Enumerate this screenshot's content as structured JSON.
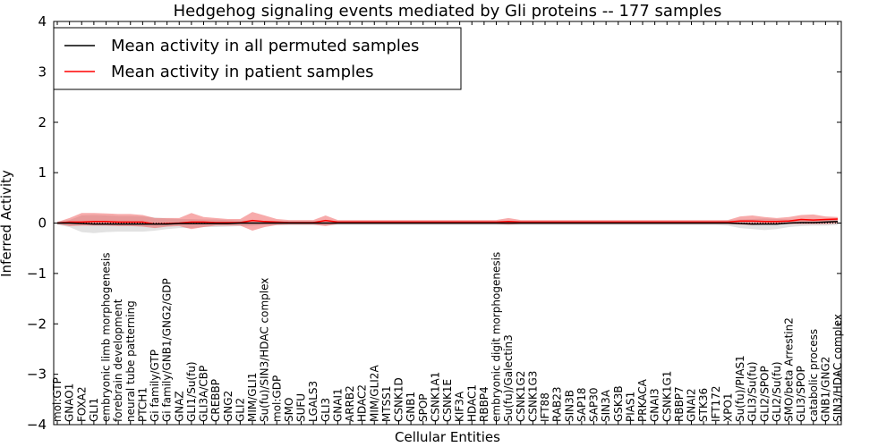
{
  "chart_data": {
    "type": "line",
    "title": "Hedgehog signaling events mediated by Gli proteins -- 177 samples",
    "xlabel": "Cellular Entities",
    "ylabel": "Inferred Activity",
    "ylim": [
      -4,
      4
    ],
    "yticks": [
      4,
      3,
      2,
      1,
      0,
      -1,
      -2,
      -3,
      -4
    ],
    "ytick_labels": [
      "4",
      "3",
      "2",
      "1",
      "0",
      "−1",
      "−2",
      "−3",
      "−4"
    ],
    "legend_location": "top-left",
    "categories": [
      "mol:GTP",
      "GNAO1",
      "FOXA2",
      "GLI1",
      "embryonic limb morphogenesis",
      "forebrain development",
      "neural tube patterning",
      "PTCH1",
      "Gi family/GTP",
      "Gi family/GNB1/GNG2/GDP",
      "GNAZ",
      "GLI1/Su(fu)",
      "GLI3A/CBP",
      "CREBBP",
      "GNG2",
      "GLI2",
      "MIM/GLI1",
      "Su(fu)/SIN3/HDAC complex",
      "mol:GDP",
      "SMO",
      "SUFU",
      "LGALS3",
      "GLI3",
      "GNAI1",
      "ARRB2",
      "HDAC2",
      "MIM/GLI2A",
      "MTSS1",
      "CSNK1D",
      "GNB1",
      "SPOP",
      "CSNK1A1",
      "CSNK1E",
      "KIF3A",
      "HDAC1",
      "RBBP4",
      "embryonic digit morphogenesis",
      "Su(fu)/Galectin3",
      "CSNK1G2",
      "CSNK1G3",
      "IFT88",
      "RAB23",
      "SIN3B",
      "SAP18",
      "SAP30",
      "SIN3A",
      "GSK3B",
      "PIAS1",
      "PRKACA",
      "GNAI3",
      "CSNK1G1",
      "RBBP7",
      "GNAI2",
      "STK36",
      "IFT172",
      "XPO1",
      "Su(fu)/PIAS1",
      "GLI3/Su(fu)",
      "GLI2/SPOP",
      "GLI2/Su(fu)",
      "SMO/beta Arrestin2",
      "GLI3/SPOP",
      "catabolic process",
      "GNB1/GNG2",
      "SIN3/HDAC complex"
    ],
    "series": [
      {
        "name": "Mean activity in all permuted samples",
        "color": "#000000",
        "values": [
          0.0,
          0.0,
          -0.01,
          -0.02,
          -0.02,
          -0.02,
          -0.02,
          -0.02,
          -0.02,
          -0.02,
          -0.01,
          -0.01,
          -0.01,
          -0.01,
          -0.01,
          0.0,
          0.0,
          0.0,
          0.0,
          0.0,
          0.0,
          0.0,
          0.0,
          0.0,
          0.0,
          0.0,
          0.0,
          0.0,
          0.0,
          0.0,
          0.0,
          0.0,
          0.0,
          0.0,
          0.0,
          0.0,
          0.0,
          0.0,
          0.0,
          0.0,
          0.0,
          0.0,
          0.0,
          0.0,
          0.0,
          0.0,
          0.0,
          0.0,
          0.0,
          0.0,
          0.0,
          0.0,
          0.0,
          0.0,
          0.0,
          0.0,
          -0.01,
          -0.02,
          -0.02,
          -0.02,
          0.0,
          0.01,
          0.01,
          0.02,
          0.03
        ],
        "band_low": [
          -0.03,
          -0.08,
          -0.18,
          -0.2,
          -0.18,
          -0.17,
          -0.17,
          -0.17,
          -0.15,
          -0.12,
          -0.1,
          -0.1,
          -0.08,
          -0.08,
          -0.07,
          -0.06,
          -0.05,
          -0.04,
          -0.04,
          -0.04,
          -0.04,
          -0.04,
          -0.04,
          -0.04,
          -0.04,
          -0.04,
          -0.04,
          -0.04,
          -0.04,
          -0.04,
          -0.04,
          -0.04,
          -0.04,
          -0.04,
          -0.04,
          -0.04,
          -0.04,
          -0.04,
          -0.04,
          -0.04,
          -0.04,
          -0.04,
          -0.04,
          -0.04,
          -0.04,
          -0.04,
          -0.04,
          -0.04,
          -0.04,
          -0.04,
          -0.04,
          -0.04,
          -0.04,
          -0.04,
          -0.04,
          -0.05,
          -0.1,
          -0.12,
          -0.14,
          -0.12,
          -0.08,
          -0.06,
          -0.05,
          -0.05,
          -0.04
        ],
        "band_high": [
          0.03,
          0.06,
          0.15,
          0.16,
          0.15,
          0.14,
          0.14,
          0.13,
          0.11,
          0.09,
          0.08,
          0.08,
          0.07,
          0.07,
          0.06,
          0.05,
          0.05,
          0.04,
          0.04,
          0.04,
          0.04,
          0.04,
          0.04,
          0.04,
          0.04,
          0.04,
          0.04,
          0.04,
          0.04,
          0.04,
          0.04,
          0.04,
          0.04,
          0.04,
          0.04,
          0.04,
          0.04,
          0.04,
          0.04,
          0.04,
          0.04,
          0.04,
          0.04,
          0.04,
          0.04,
          0.04,
          0.04,
          0.04,
          0.04,
          0.04,
          0.04,
          0.04,
          0.04,
          0.04,
          0.04,
          0.05,
          0.07,
          0.08,
          0.09,
          0.08,
          0.07,
          0.06,
          0.06,
          0.07,
          0.08
        ]
      },
      {
        "name": "Mean activity in patient samples",
        "color": "#ff0000",
        "values": [
          0.0,
          0.02,
          0.02,
          0.03,
          0.03,
          0.02,
          0.02,
          0.02,
          -0.02,
          -0.01,
          0.0,
          0.02,
          0.02,
          0.01,
          0.01,
          0.01,
          0.05,
          0.03,
          0.02,
          0.01,
          0.01,
          0.01,
          0.05,
          0.02,
          0.02,
          0.02,
          0.02,
          0.02,
          0.02,
          0.02,
          0.02,
          0.02,
          0.02,
          0.02,
          0.02,
          0.02,
          0.02,
          0.03,
          0.02,
          0.02,
          0.02,
          0.02,
          0.02,
          0.02,
          0.02,
          0.02,
          0.02,
          0.02,
          0.02,
          0.02,
          0.02,
          0.02,
          0.02,
          0.02,
          0.02,
          0.02,
          0.04,
          0.04,
          0.03,
          0.03,
          0.04,
          0.07,
          0.06,
          0.07,
          0.08
        ],
        "band_low": [
          -0.02,
          -0.06,
          -0.05,
          -0.05,
          -0.05,
          -0.06,
          -0.06,
          -0.07,
          -0.1,
          -0.07,
          -0.06,
          -0.12,
          -0.08,
          -0.05,
          -0.05,
          -0.05,
          -0.15,
          -0.08,
          -0.04,
          -0.03,
          -0.03,
          -0.03,
          -0.06,
          -0.02,
          -0.02,
          -0.02,
          -0.02,
          -0.02,
          -0.02,
          -0.02,
          -0.02,
          -0.02,
          -0.02,
          -0.02,
          -0.02,
          -0.02,
          -0.02,
          -0.03,
          -0.02,
          -0.02,
          -0.02,
          -0.02,
          -0.02,
          -0.02,
          -0.02,
          -0.02,
          -0.02,
          -0.02,
          -0.02,
          -0.02,
          -0.02,
          -0.02,
          -0.02,
          -0.02,
          -0.02,
          -0.02,
          -0.03,
          -0.04,
          -0.03,
          -0.02,
          -0.02,
          -0.02,
          -0.02,
          -0.02,
          -0.01
        ],
        "band_high": [
          0.02,
          0.1,
          0.2,
          0.2,
          0.19,
          0.18,
          0.18,
          0.16,
          0.1,
          0.1,
          0.1,
          0.2,
          0.12,
          0.1,
          0.08,
          0.08,
          0.22,
          0.15,
          0.08,
          0.06,
          0.06,
          0.06,
          0.15,
          0.06,
          0.06,
          0.06,
          0.06,
          0.06,
          0.06,
          0.06,
          0.06,
          0.06,
          0.06,
          0.06,
          0.06,
          0.06,
          0.06,
          0.1,
          0.06,
          0.06,
          0.06,
          0.06,
          0.06,
          0.06,
          0.06,
          0.06,
          0.06,
          0.06,
          0.06,
          0.06,
          0.06,
          0.06,
          0.06,
          0.06,
          0.06,
          0.06,
          0.13,
          0.15,
          0.12,
          0.1,
          0.12,
          0.16,
          0.17,
          0.13,
          0.12
        ]
      }
    ]
  }
}
